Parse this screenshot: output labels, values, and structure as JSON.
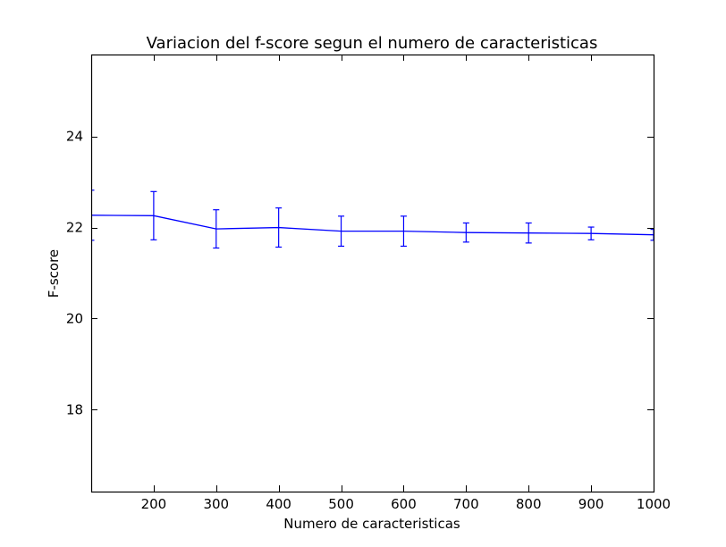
{
  "chart_data": {
    "type": "line",
    "title": "Variacion del f-score segun el numero de caracteristicas",
    "xlabel": "Numero de caracteristicas",
    "ylabel": "F-score",
    "xlim": [
      100,
      1000
    ],
    "ylim": [
      16.2,
      25.8
    ],
    "x_ticks": [
      200,
      300,
      400,
      500,
      600,
      700,
      800,
      900,
      1000
    ],
    "y_ticks": [
      18,
      20,
      22,
      24
    ],
    "grid": false,
    "legend": "none",
    "series": [
      {
        "color": "#0000ff",
        "x": [
          100,
          200,
          300,
          400,
          500,
          600,
          700,
          800,
          900,
          1000
        ],
        "y": [
          22.27,
          22.26,
          21.97,
          22.0,
          21.92,
          21.92,
          21.89,
          21.88,
          21.87,
          21.84
        ],
        "error": [
          0.55,
          0.53,
          0.42,
          0.43,
          0.33,
          0.33,
          0.21,
          0.22,
          0.14,
          0.12
        ]
      }
    ]
  }
}
